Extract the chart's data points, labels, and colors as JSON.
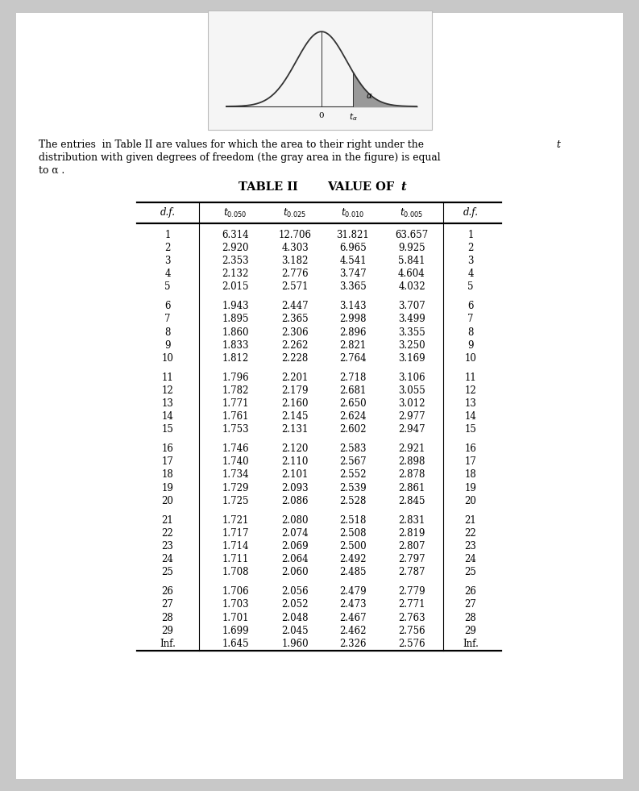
{
  "rows": [
    [
      "1",
      "6.314",
      "12.706",
      "31.821",
      "63.657",
      "1"
    ],
    [
      "2",
      "2.920",
      "4.303",
      "6.965",
      "9.925",
      "2"
    ],
    [
      "3",
      "2.353",
      "3.182",
      "4.541",
      "5.841",
      "3"
    ],
    [
      "4",
      "2.132",
      "2.776",
      "3.747",
      "4.604",
      "4"
    ],
    [
      "5",
      "2.015",
      "2.571",
      "3.365",
      "4.032",
      "5"
    ],
    [
      "6",
      "1.943",
      "2.447",
      "3.143",
      "3.707",
      "6"
    ],
    [
      "7",
      "1.895",
      "2.365",
      "2.998",
      "3.499",
      "7"
    ],
    [
      "8",
      "1.860",
      "2.306",
      "2.896",
      "3.355",
      "8"
    ],
    [
      "9",
      "1.833",
      "2.262",
      "2.821",
      "3.250",
      "9"
    ],
    [
      "10",
      "1.812",
      "2.228",
      "2.764",
      "3.169",
      "10"
    ],
    [
      "11",
      "1.796",
      "2.201",
      "2.718",
      "3.106",
      "11"
    ],
    [
      "12",
      "1.782",
      "2.179",
      "2.681",
      "3.055",
      "12"
    ],
    [
      "13",
      "1.771",
      "2.160",
      "2.650",
      "3.012",
      "13"
    ],
    [
      "14",
      "1.761",
      "2.145",
      "2.624",
      "2.977",
      "14"
    ],
    [
      "15",
      "1.753",
      "2.131",
      "2.602",
      "2.947",
      "15"
    ],
    [
      "16",
      "1.746",
      "2.120",
      "2.583",
      "2.921",
      "16"
    ],
    [
      "17",
      "1.740",
      "2.110",
      "2.567",
      "2.898",
      "17"
    ],
    [
      "18",
      "1.734",
      "2.101",
      "2.552",
      "2.878",
      "18"
    ],
    [
      "19",
      "1.729",
      "2.093",
      "2.539",
      "2.861",
      "19"
    ],
    [
      "20",
      "1.725",
      "2.086",
      "2.528",
      "2.845",
      "20"
    ],
    [
      "21",
      "1.721",
      "2.080",
      "2.518",
      "2.831",
      "21"
    ],
    [
      "22",
      "1.717",
      "2.074",
      "2.508",
      "2.819",
      "22"
    ],
    [
      "23",
      "1.714",
      "2.069",
      "2.500",
      "2.807",
      "23"
    ],
    [
      "24",
      "1.711",
      "2.064",
      "2.492",
      "2.797",
      "24"
    ],
    [
      "25",
      "1.708",
      "2.060",
      "2.485",
      "2.787",
      "25"
    ],
    [
      "26",
      "1.706",
      "2.056",
      "2.479",
      "2.779",
      "26"
    ],
    [
      "27",
      "1.703",
      "2.052",
      "2.473",
      "2.771",
      "27"
    ],
    [
      "28",
      "1.701",
      "2.048",
      "2.467",
      "2.763",
      "28"
    ],
    [
      "29",
      "1.699",
      "2.045",
      "2.462",
      "2.756",
      "29"
    ],
    [
      "Inf.",
      "1.645",
      "1.960",
      "2.326",
      "2.576",
      "Inf."
    ]
  ],
  "page_bg": "#c8c8c8",
  "white_bg": "#ffffff",
  "inset_bg": "#f5f5f5",
  "inset_border": "#bbbbbb",
  "curve_color": "#333333",
  "fill_color": "#999999",
  "text_color": "#000000",
  "fig_w": 7.93,
  "fig_h": 9.81,
  "dpi": 100
}
